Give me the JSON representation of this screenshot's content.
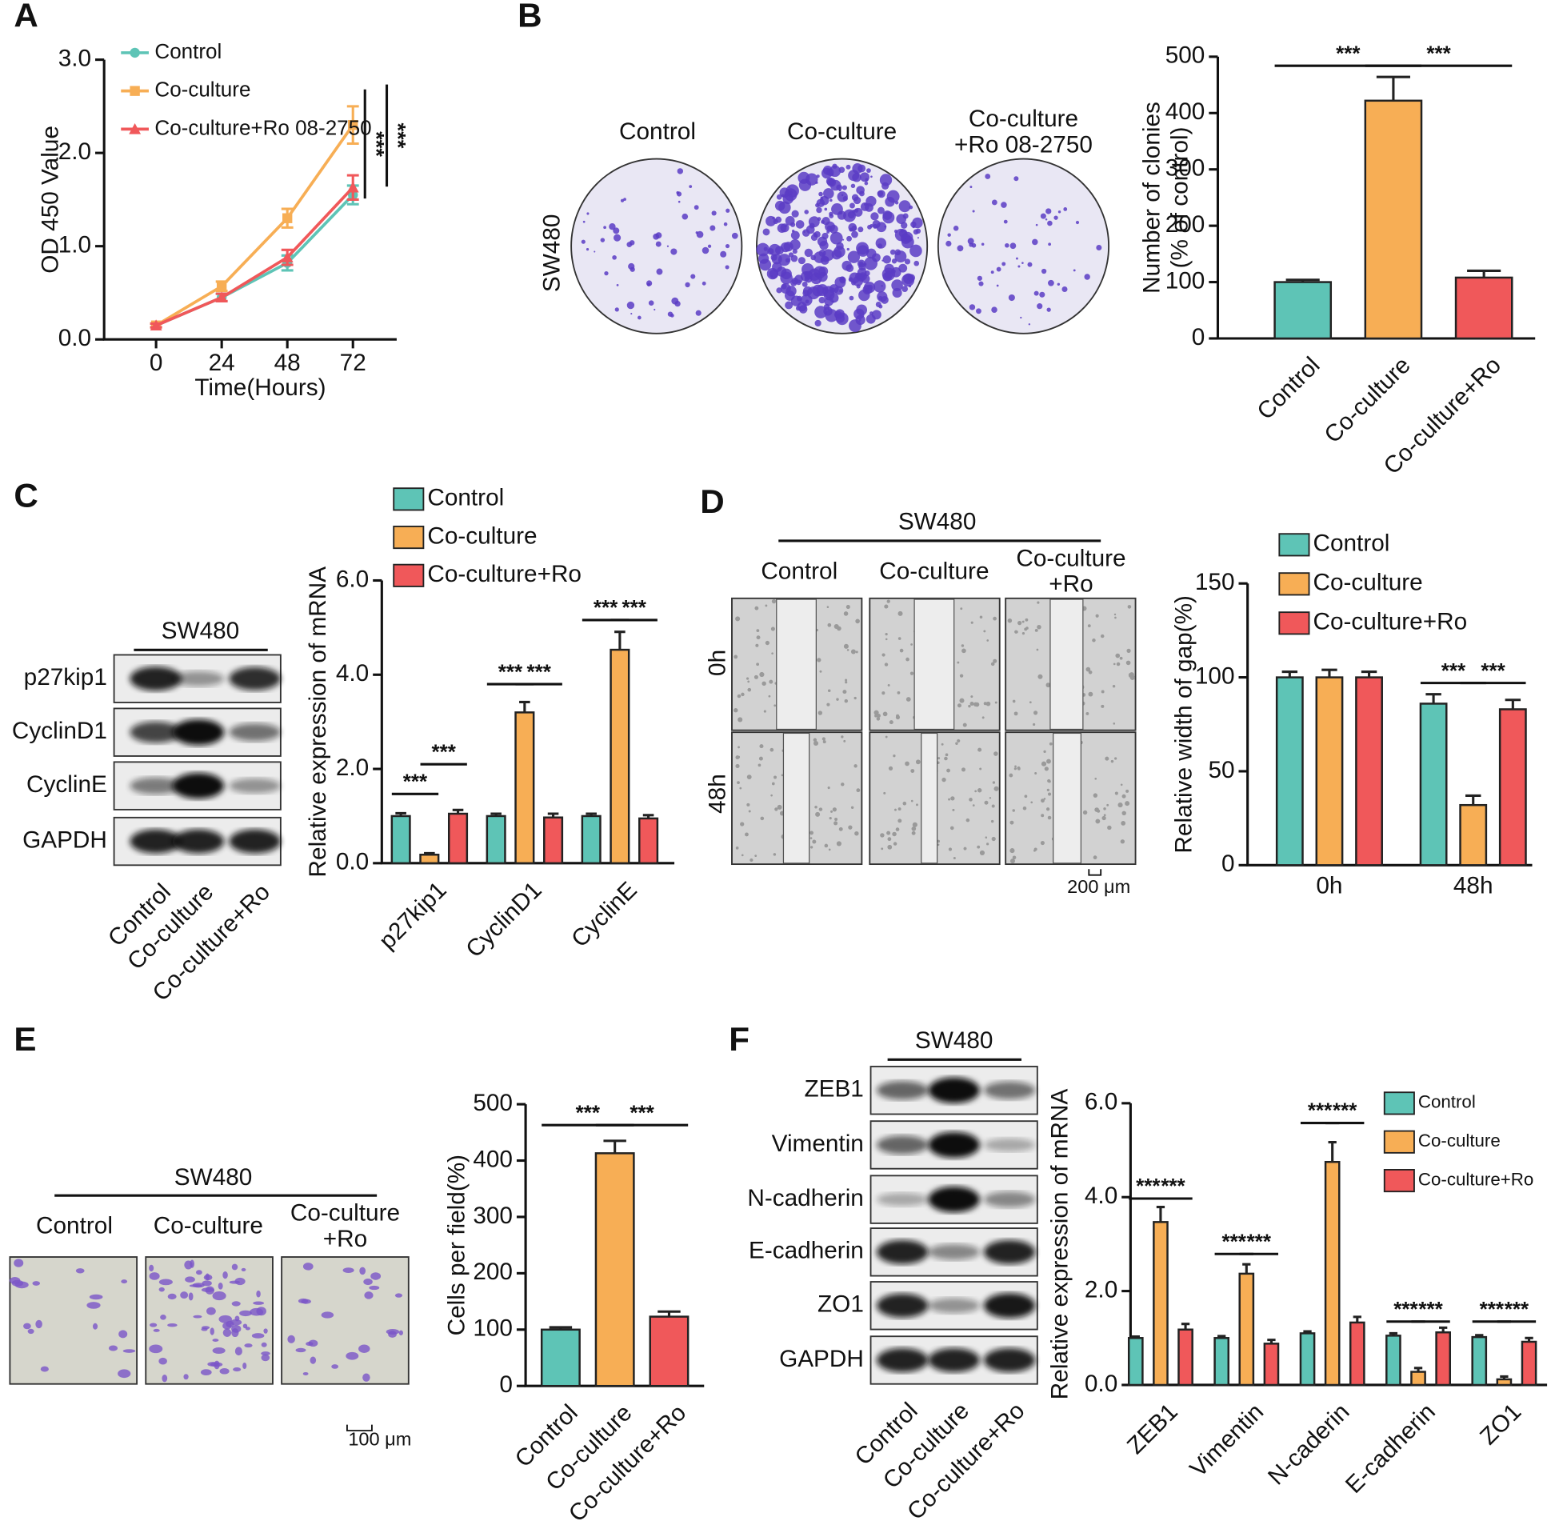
{
  "chart_data": [
    {
      "type": "line",
      "xlabel": "Time(Hours)",
      "ylabel": "OD 450 Value",
      "x": [
        0,
        24,
        48,
        72
      ],
      "xlim": [
        -19,
        88
      ],
      "xticks": [
        0,
        24,
        48,
        72
      ],
      "ylim": [
        0,
        3
      ],
      "yticks": [
        {
          "value": 0,
          "label": "0.0"
        },
        {
          "value": 1,
          "label": "1.0"
        },
        {
          "value": 2,
          "label": "2.0"
        },
        {
          "value": 3,
          "label": "3.0"
        }
      ],
      "series": [
        {
          "name": "Control",
          "color": "#5ec4b6",
          "values": [
            0.15,
            0.45,
            0.82,
            1.55
          ],
          "errors": [
            0.02,
            0.04,
            0.08,
            0.1
          ]
        },
        {
          "name": "Co-culture",
          "color": "#f7ae55",
          "values": [
            0.15,
            0.57,
            1.3,
            2.3
          ],
          "errors": [
            0.02,
            0.05,
            0.1,
            0.2
          ]
        },
        {
          "name": "Co-culture+Ro 08-2750",
          "color": "#f0585a",
          "values": [
            0.15,
            0.45,
            0.88,
            1.63
          ],
          "errors": [
            0.02,
            0.04,
            0.08,
            0.13
          ]
        }
      ],
      "annotations": [
        "***",
        "***"
      ]
    },
    {
      "type": "bar",
      "ylabel": [
        "Number of clonies",
        "(% of control)"
      ],
      "categories": [
        "Control",
        "Co-culture",
        "Co-culture+Ro"
      ],
      "values": [
        100,
        422,
        108
      ],
      "errors": [
        4,
        42,
        12
      ],
      "colors": [
        "#5ec4b6",
        "#f7ae55",
        "#f0585a"
      ],
      "ylim": [
        0,
        500
      ],
      "yticks": [
        0,
        100,
        200,
        300,
        400,
        500
      ],
      "annotations": [
        "***",
        "***"
      ]
    },
    {
      "type": "bar",
      "ylabel": "Relative expression of mRNA",
      "categories": [
        "p27kip1",
        "CyclinD1",
        "CyclinE"
      ],
      "series": [
        {
          "name": "Control",
          "color": "#5ec4b6",
          "values": [
            1.0,
            1.0,
            1.0
          ],
          "errors": [
            0.06,
            0.05,
            0.05
          ]
        },
        {
          "name": "Co-culture",
          "color": "#f7ae55",
          "values": [
            0.18,
            3.2,
            4.53
          ],
          "errors": [
            0.03,
            0.22,
            0.38
          ]
        },
        {
          "name": "Co-culture+Ro",
          "color": "#f0585a",
          "values": [
            1.05,
            0.97,
            0.95
          ],
          "errors": [
            0.08,
            0.08,
            0.07
          ]
        }
      ],
      "ylim": [
        0,
        6
      ],
      "yticks": [
        {
          "value": 0,
          "label": "0.0"
        },
        {
          "value": 2,
          "label": "2.0"
        },
        {
          "value": 4,
          "label": "4.0"
        },
        {
          "value": 6,
          "label": "6.0"
        }
      ],
      "annotations": [
        "***",
        "***",
        "***",
        "***",
        "***",
        "***"
      ]
    },
    {
      "type": "bar",
      "ylabel": "Relative width of gap(%)",
      "categories": [
        "0h",
        "48h"
      ],
      "series": [
        {
          "name": "Control",
          "color": "#5ec4b6",
          "values": [
            100,
            86
          ],
          "errors": [
            3,
            5
          ]
        },
        {
          "name": "Co-culture",
          "color": "#f7ae55",
          "values": [
            100,
            32
          ],
          "errors": [
            4,
            5
          ]
        },
        {
          "name": "Co-culture+Ro",
          "color": "#f0585a",
          "values": [
            100,
            83
          ],
          "errors": [
            3,
            5
          ]
        }
      ],
      "ylim": [
        0,
        150
      ],
      "yticks": [
        0,
        50,
        100,
        150
      ],
      "annotations": [
        "***",
        "***"
      ]
    },
    {
      "type": "bar",
      "ylabel": "Cells per field(%)",
      "categories": [
        "Control",
        "Co-culture",
        "Co-culture+Ro"
      ],
      "values": [
        100,
        413,
        123
      ],
      "errors": [
        4,
        22,
        9
      ],
      "colors": [
        "#5ec4b6",
        "#f7ae55",
        "#f0585a"
      ],
      "ylim": [
        0,
        500
      ],
      "yticks": [
        0,
        100,
        200,
        300,
        400,
        500
      ],
      "annotations": [
        "***",
        "***"
      ]
    },
    {
      "type": "bar",
      "ylabel": "Relative expression of mRNA",
      "categories": [
        "ZEB1",
        "Vimentin",
        "N-caderin",
        "E-cadherin",
        "ZO1"
      ],
      "series": [
        {
          "name": "Control",
          "color": "#5ec4b6",
          "values": [
            1.0,
            1.0,
            1.1,
            1.05,
            1.02
          ],
          "errors": [
            0.03,
            0.04,
            0.04,
            0.05,
            0.04
          ]
        },
        {
          "name": "Co-culture",
          "color": "#f7ae55",
          "values": [
            3.47,
            2.37,
            4.75,
            0.28,
            0.12
          ],
          "errors": [
            0.32,
            0.2,
            0.42,
            0.08,
            0.06
          ]
        },
        {
          "name": "Co-culture+Ro",
          "color": "#f0585a",
          "values": [
            1.18,
            0.88,
            1.33,
            1.12,
            0.92
          ],
          "errors": [
            0.12,
            0.08,
            0.12,
            0.1,
            0.08
          ]
        }
      ],
      "ylim": [
        0,
        6
      ],
      "yticks": [
        {
          "value": 0,
          "label": "0.0"
        },
        {
          "value": 2,
          "label": "2.0"
        },
        {
          "value": 4,
          "label": "4.0"
        },
        {
          "value": 6,
          "label": "6.0"
        }
      ],
      "annotations": [
        "***",
        "***",
        "***",
        "***",
        "***",
        "***",
        "***",
        "***",
        "***",
        "***"
      ]
    }
  ],
  "panels": {
    "labels": [
      "A",
      "B",
      "C",
      "D",
      "E",
      "F"
    ],
    "B": {
      "row": "SW480",
      "columns": [
        "Control",
        "Co-culture",
        [
          "Co-culture",
          "+Ro 08-2750"
        ]
      ]
    },
    "C": {
      "title": "SW480",
      "rows": [
        "p27kip1",
        "CyclinD1",
        "CyclinE",
        "GAPDH"
      ],
      "columns": [
        "Control",
        "Co-culture",
        "Co-culture+Ro"
      ]
    },
    "D": {
      "title": "SW480",
      "columns": [
        "Control",
        "Co-culture",
        [
          "Co-culture",
          "+Ro"
        ]
      ],
      "rows": [
        "0h",
        "48h"
      ],
      "scale": "200 μm"
    },
    "E": {
      "title": "SW480",
      "columns": [
        "Control",
        "Co-culture",
        [
          "Co-culture",
          "+Ro"
        ]
      ],
      "scale": "100 μm"
    },
    "F": {
      "title": "SW480",
      "rows": [
        "ZEB1",
        "Vimentin",
        "N-cadherin",
        "E-cadherin",
        "ZO1",
        "GAPDH"
      ],
      "columns": [
        "Control",
        "Co-culture",
        "Co-culture+Ro"
      ]
    }
  }
}
